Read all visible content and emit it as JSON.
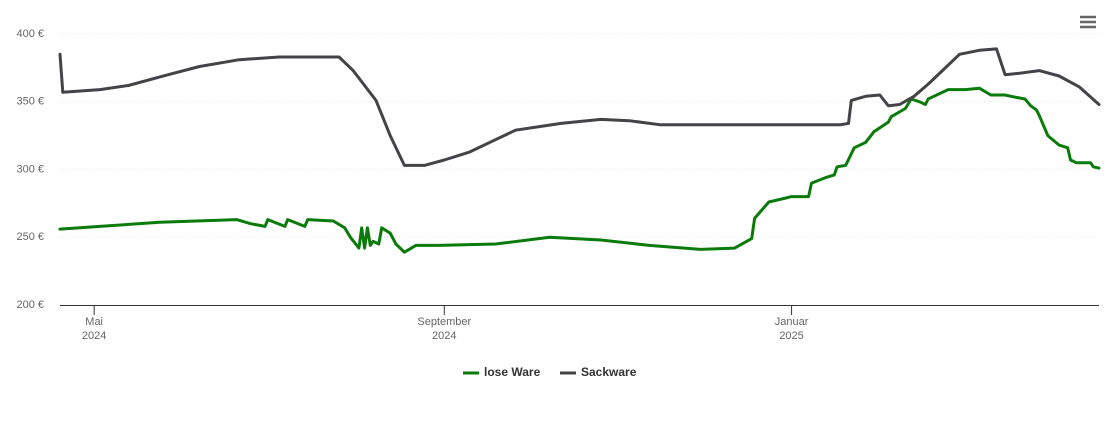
{
  "chart_data": {
    "type": "line",
    "xlim": [
      "2024-04-19",
      "2025-04-19"
    ],
    "xticks": [
      {
        "value": "2024-05-01",
        "label": [
          "Mai",
          "2024"
        ]
      },
      {
        "value": "2024-09-01",
        "label": [
          "September",
          "2024"
        ]
      },
      {
        "value": "2025-01-01",
        "label": [
          "Januar",
          "2025"
        ]
      }
    ],
    "ylim": [
      200,
      400
    ],
    "yticks": [
      {
        "value": 200,
        "label": "200 €"
      },
      {
        "value": 250,
        "label": "250 €"
      },
      {
        "value": 300,
        "label": "300 €"
      },
      {
        "value": 350,
        "label": "350 €"
      },
      {
        "value": 400,
        "label": "400 €"
      }
    ],
    "grid": true,
    "legend": "bottom",
    "series": [
      {
        "name": "lose Ware",
        "color": "#0a7a0a",
        "x": [
          "2024-04-19",
          "2024-05-03",
          "2024-05-24",
          "2024-06-20",
          "2024-06-25",
          "2024-06-30",
          "2024-07-01",
          "2024-07-07",
          "2024-07-08",
          "2024-07-14",
          "2024-07-15",
          "2024-07-24",
          "2024-07-28",
          "2024-07-30",
          "2024-08-02",
          "2024-08-03",
          "2024-08-04",
          "2024-08-05",
          "2024-08-06",
          "2024-08-07",
          "2024-08-09",
          "2024-08-10",
          "2024-08-13",
          "2024-08-15",
          "2024-08-18",
          "2024-08-22",
          "2024-08-30",
          "2024-09-19",
          "2024-10-08",
          "2024-10-26",
          "2024-11-12",
          "2024-11-30",
          "2024-12-12",
          "2024-12-18",
          "2024-12-19",
          "2024-12-24",
          "2024-12-30",
          "2025-01-01",
          "2025-01-07",
          "2025-01-08",
          "2025-01-13",
          "2025-01-16",
          "2025-01-17",
          "2025-01-20",
          "2025-01-23",
          "2025-01-27",
          "2025-01-30",
          "2025-02-04",
          "2025-02-05",
          "2025-02-10",
          "2025-02-12",
          "2025-02-15",
          "2025-02-17",
          "2025-02-18",
          "2025-02-20",
          "2025-02-25",
          "2025-03-03",
          "2025-03-08",
          "2025-03-12",
          "2025-03-17",
          "2025-03-19",
          "2025-03-24",
          "2025-03-26",
          "2025-03-28",
          "2025-03-29",
          "2025-04-01",
          "2025-04-05",
          "2025-04-08",
          "2025-04-09",
          "2025-04-11",
          "2025-04-16",
          "2025-04-17",
          "2025-04-19"
        ],
        "values": [
          256,
          258,
          261,
          263,
          260,
          258,
          263,
          258,
          263,
          258,
          263,
          262,
          257,
          250,
          242,
          257,
          242,
          257,
          244,
          247,
          245,
          257,
          253,
          245,
          239,
          244,
          244,
          245,
          250,
          248,
          244,
          241,
          242,
          249,
          264,
          276,
          279,
          280,
          280,
          290,
          294,
          296,
          302,
          303,
          316,
          320,
          328,
          335,
          339,
          345,
          352,
          350,
          348,
          352,
          354,
          359,
          359,
          360,
          355,
          355,
          354,
          352,
          347,
          344,
          340,
          325,
          318,
          316,
          307,
          305,
          305,
          302,
          301
        ]
      },
      {
        "name": "Sackware",
        "color": "#434348",
        "x": [
          "2024-04-19",
          "2024-04-20",
          "2024-05-03",
          "2024-05-13",
          "2024-05-27",
          "2024-06-07",
          "2024-06-21",
          "2024-07-05",
          "2024-07-26",
          "2024-07-31",
          "2024-08-08",
          "2024-08-13",
          "2024-08-18",
          "2024-08-25",
          "2024-09-01",
          "2024-09-10",
          "2024-09-19",
          "2024-09-26",
          "2024-10-12",
          "2024-10-26",
          "2024-11-05",
          "2024-11-16",
          "2025-01-18",
          "2025-01-21",
          "2025-01-22",
          "2025-01-27",
          "2025-02-01",
          "2025-02-04",
          "2025-02-08",
          "2025-02-13",
          "2025-02-18",
          "2025-02-24",
          "2025-03-01",
          "2025-03-08",
          "2025-03-14",
          "2025-03-17",
          "2025-03-22",
          "2025-03-29",
          "2025-04-05",
          "2025-04-12",
          "2025-04-19"
        ],
        "values": [
          385,
          357,
          359,
          362,
          370,
          376,
          381,
          383,
          383,
          373,
          351,
          325,
          303,
          303,
          307,
          313,
          322,
          329,
          334,
          337,
          336,
          333,
          333,
          334,
          351,
          354,
          355,
          347,
          348,
          354,
          363,
          375,
          385,
          388,
          389,
          370,
          371,
          373,
          369,
          361,
          348
        ]
      }
    ]
  }
}
